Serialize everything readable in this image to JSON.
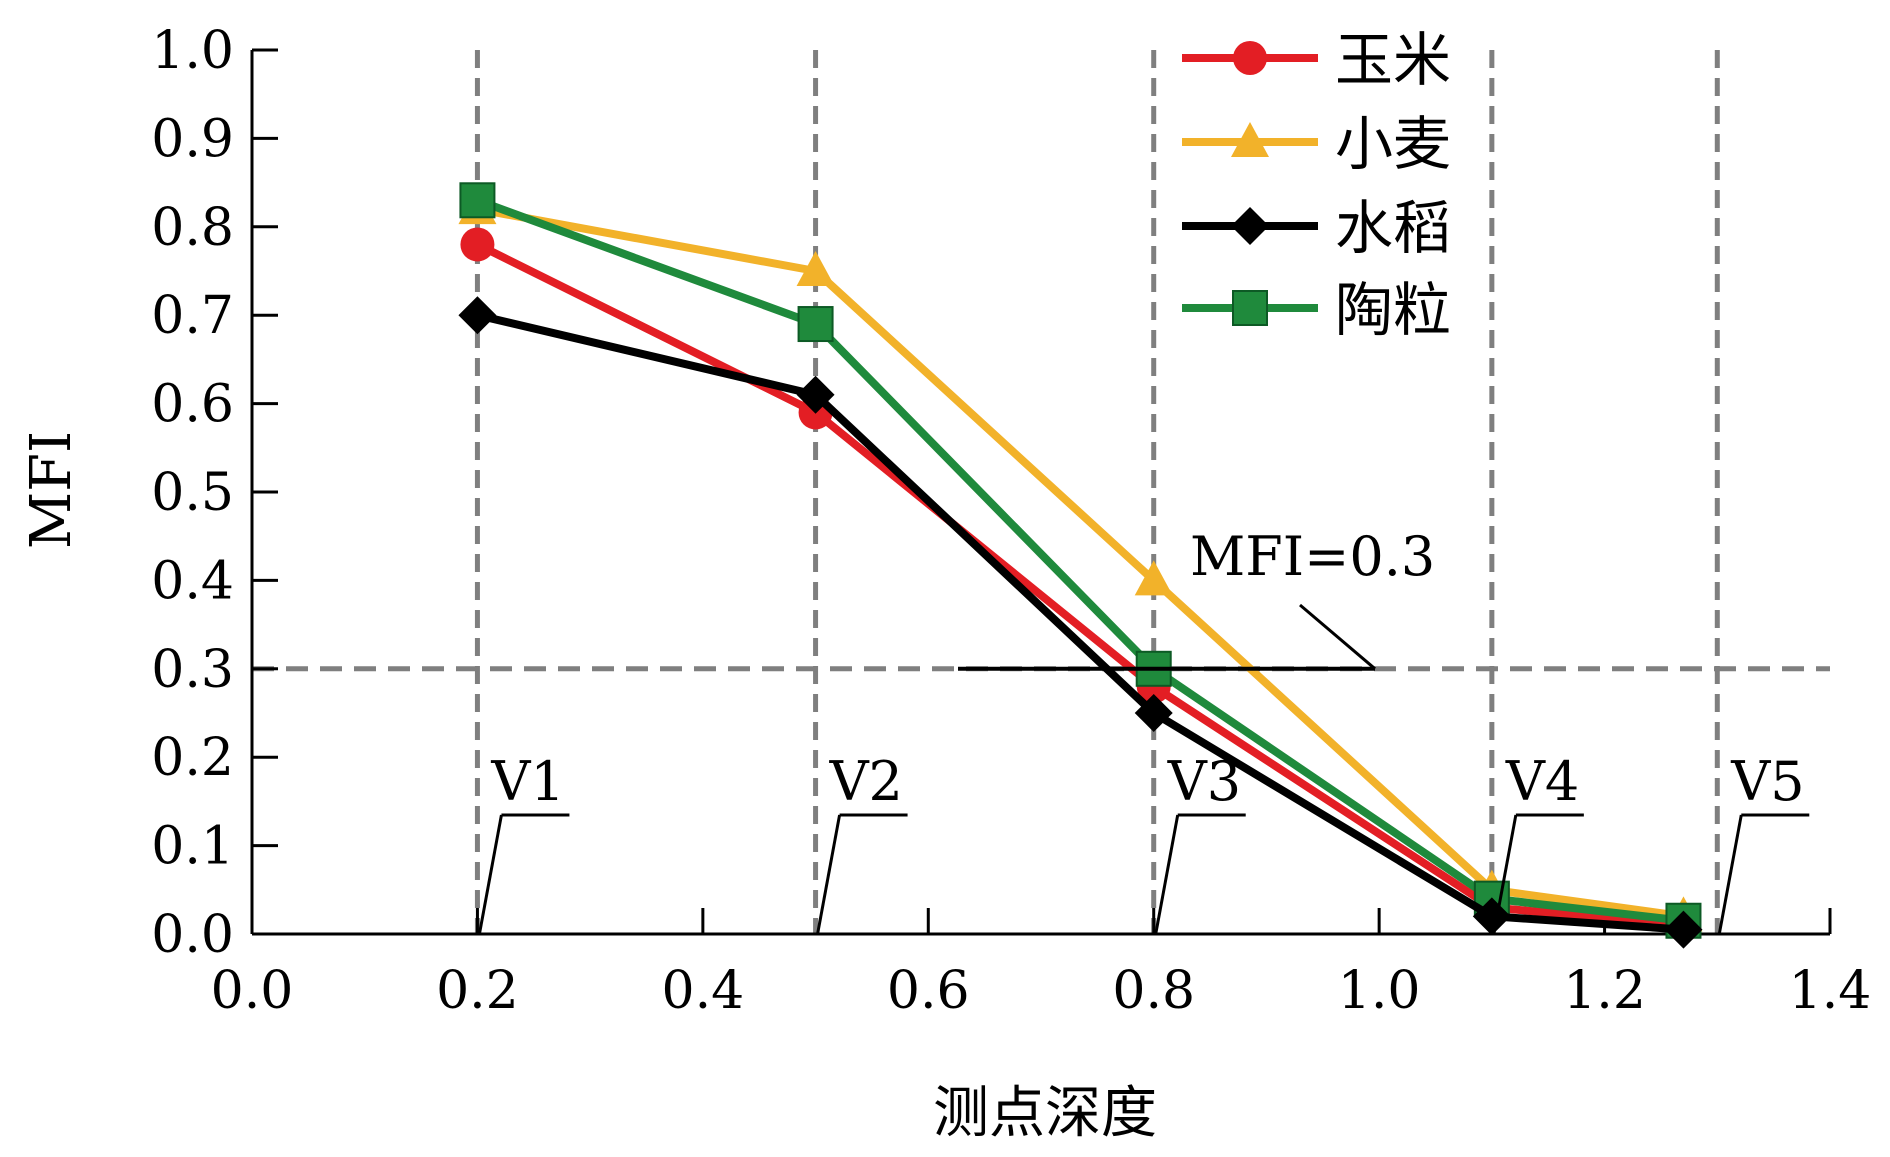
{
  "chart_data": {
    "type": "line",
    "xlabel": "测点深度",
    "ylabel": "MFI",
    "xlim": [
      0.0,
      1.4
    ],
    "ylim": [
      0.0,
      1.0
    ],
    "x_ticks": [
      "0.0",
      "0.2",
      "0.4",
      "0.6",
      "0.8",
      "1.0",
      "1.2",
      "1.4"
    ],
    "y_ticks": [
      "0.0",
      "0.1",
      "0.2",
      "0.3",
      "0.4",
      "0.5",
      "0.6",
      "0.7",
      "0.8",
      "0.9",
      "1.0"
    ],
    "legend_position": "top-right",
    "series": [
      {
        "name": "玉米",
        "color": "#e31e24",
        "marker": "circle",
        "x": [
          0.2,
          0.5,
          0.8,
          1.1,
          1.27
        ],
        "y": [
          0.78,
          0.59,
          0.28,
          0.03,
          0.01
        ]
      },
      {
        "name": "小麦",
        "color": "#f2b22a",
        "marker": "triangle",
        "x": [
          0.2,
          0.5,
          0.8,
          1.1,
          1.27
        ],
        "y": [
          0.82,
          0.75,
          0.4,
          0.05,
          0.02
        ]
      },
      {
        "name": "水稻",
        "color": "#000000",
        "marker": "diamond",
        "x": [
          0.2,
          0.5,
          0.8,
          1.1,
          1.27
        ],
        "y": [
          0.7,
          0.61,
          0.25,
          0.02,
          0.005
        ]
      },
      {
        "name": "陶粒",
        "color": "#1f8a3c",
        "marker": "square",
        "x": [
          0.2,
          0.5,
          0.8,
          1.1,
          1.27
        ],
        "y": [
          0.83,
          0.69,
          0.3,
          0.04,
          0.015
        ]
      }
    ],
    "reference_lines": {
      "horizontal": {
        "y": 0.3,
        "label": "MFI=0.3"
      },
      "vertical": [
        {
          "x": 0.2,
          "label": "V1"
        },
        {
          "x": 0.5,
          "label": "V2"
        },
        {
          "x": 0.8,
          "label": "V3"
        },
        {
          "x": 1.1,
          "label": "V4"
        },
        {
          "x": 1.3,
          "label": "V5"
        }
      ]
    },
    "grid": false
  }
}
